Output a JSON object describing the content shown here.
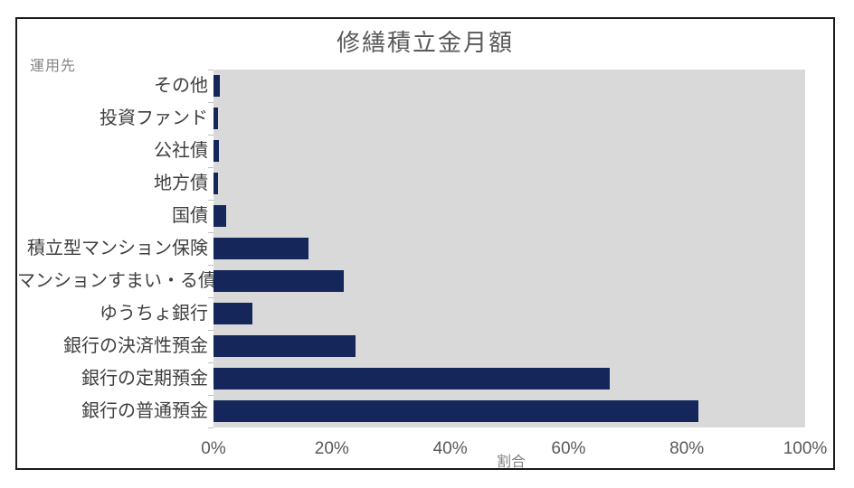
{
  "chart_data": {
    "type": "bar",
    "orientation": "horizontal",
    "title": "修繕積立金月額",
    "y_axis_title": "運用先",
    "x_axis_title": "割合",
    "categories": [
      "その他",
      "投資ファンド",
      "公社債",
      "地方債",
      "国債",
      "積立型マンション保険",
      "マンションすまい・る債",
      "ゆうちょ銀行",
      "銀行の決済性預金",
      "銀行の定期預金",
      "銀行の普通預金"
    ],
    "values": [
      1,
      0.7,
      0.9,
      0.7,
      2.2,
      16,
      22,
      6.5,
      24,
      67,
      82
    ],
    "x_ticks": [
      "0%",
      "20%",
      "40%",
      "60%",
      "80%",
      "100%"
    ],
    "xlim": [
      0,
      100
    ],
    "grid": false,
    "legend": false,
    "bar_color": "#15265b",
    "plot_background": "#d9d9d9",
    "frame_border_color": "#1a1a1a"
  }
}
